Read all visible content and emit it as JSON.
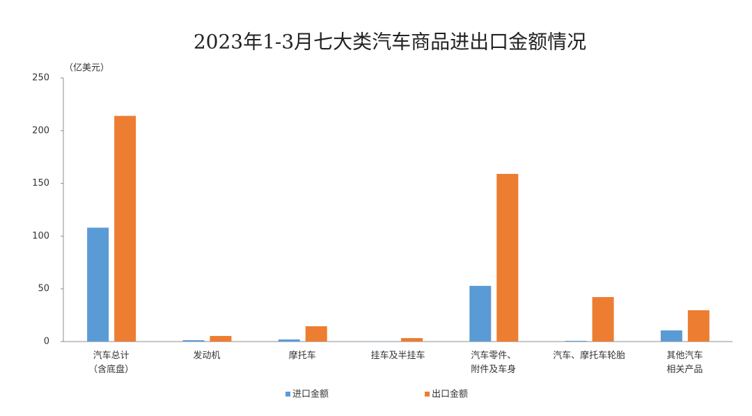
{
  "chart_data": {
    "type": "bar",
    "title": "2023年1-3月七大类汽车商品进出口金额情况",
    "y_label": "（亿美元）",
    "categories": [
      "汽车总计\n（含底盘）",
      "发动机",
      "摩托车",
      "挂车及半挂车",
      "汽车零件、\n附件及车身",
      "汽车、摩托车轮胎",
      "其他汽车\n相关产品"
    ],
    "series": [
      {
        "name": "进口金额",
        "color": "#5b9bd5",
        "values": [
          108,
          1.3,
          2,
          0.3,
          52.8,
          0.7,
          10.6
        ]
      },
      {
        "name": "出口金额",
        "color": "#ed7d31",
        "values": [
          214,
          5.3,
          14.5,
          3.3,
          159,
          42.2,
          29.7
        ]
      }
    ],
    "ylim": [
      0,
      250
    ],
    "yticks": [
      0,
      50,
      100,
      150,
      200,
      250
    ],
    "grid": false
  }
}
